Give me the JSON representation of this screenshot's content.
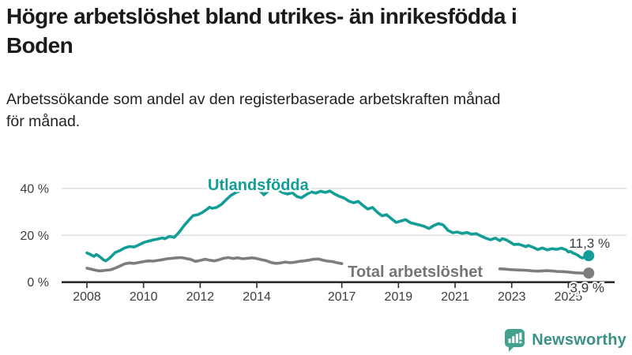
{
  "title": {
    "full": "Högre arbetslöshet bland utrikes- än inrikesfödda i Boden",
    "lines": [
      "Högre arbetslöshet bland utrikes- än inrikesfödda i",
      "Boden"
    ]
  },
  "subtitle": {
    "full": "Arbetssökande som andel av den registerbaserade arbetskraften månad för månad.",
    "lines": [
      "Arbetssökande som andel av den registerbaserade arbetskraften månad",
      "för månad."
    ]
  },
  "branding": {
    "logo_text": "Newsworthy",
    "icon": "newsworthy-bar-chart-bubble-icon",
    "icon_color": "#44a18d",
    "text_color": "#3c9184"
  },
  "chart_data": {
    "type": "line",
    "title": "Högre arbetslöshet bland utrikes- än inrikesfödda i Boden",
    "xlabel": "",
    "ylabel": "",
    "unit": "%",
    "grid": "horizontal",
    "legend_position": "inline-labels",
    "xlim": [
      2008,
      2026
    ],
    "ylim": [
      0,
      45
    ],
    "x_ticks": [
      {
        "year": 2008,
        "label": "2008"
      },
      {
        "year": 2010,
        "label": "2010"
      },
      {
        "year": 2012,
        "label": "2012"
      },
      {
        "year": 2014,
        "label": "2014"
      },
      {
        "year": 2017,
        "label": "2017"
      },
      {
        "year": 2019,
        "label": "2019"
      },
      {
        "year": 2021,
        "label": "2021"
      },
      {
        "year": 2023,
        "label": "2023"
      },
      {
        "year": 2025,
        "label": "2025"
      }
    ],
    "y_ticks": [
      {
        "value": 0,
        "label": "0 %"
      },
      {
        "value": 20,
        "label": "20 %"
      },
      {
        "value": 40,
        "label": "40 %"
      }
    ],
    "series": [
      {
        "name": "Utlandsfödda",
        "color": "#129e96",
        "label": {
          "text": "Utlandsfödda",
          "year": 2014.05,
          "value": 41.6
        },
        "end_label": {
          "text": "11,3 %",
          "value": 11.3
        },
        "points": [
          [
            2008.0,
            12.5
          ],
          [
            2008.08,
            12.1
          ],
          [
            2008.17,
            11.5
          ],
          [
            2008.25,
            11.0
          ],
          [
            2008.33,
            11.8
          ],
          [
            2008.42,
            11.2
          ],
          [
            2008.5,
            10.4
          ],
          [
            2008.58,
            9.6
          ],
          [
            2008.67,
            9.1
          ],
          [
            2008.75,
            9.8
          ],
          [
            2008.83,
            10.6
          ],
          [
            2008.92,
            11.7
          ],
          [
            2009.0,
            12.7
          ],
          [
            2009.17,
            13.5
          ],
          [
            2009.33,
            14.6
          ],
          [
            2009.5,
            15.2
          ],
          [
            2009.67,
            15.0
          ],
          [
            2009.83,
            15.9
          ],
          [
            2010.0,
            16.9
          ],
          [
            2010.17,
            17.5
          ],
          [
            2010.33,
            18.0
          ],
          [
            2010.5,
            18.4
          ],
          [
            2010.67,
            18.9
          ],
          [
            2010.75,
            18.5
          ],
          [
            2010.92,
            19.6
          ],
          [
            2011.08,
            19.1
          ],
          [
            2011.25,
            21.2
          ],
          [
            2011.42,
            24.0
          ],
          [
            2011.58,
            26.2
          ],
          [
            2011.75,
            28.4
          ],
          [
            2011.92,
            28.8
          ],
          [
            2012.08,
            29.8
          ],
          [
            2012.25,
            31.2
          ],
          [
            2012.33,
            32.0
          ],
          [
            2012.42,
            31.5
          ],
          [
            2012.58,
            31.9
          ],
          [
            2012.75,
            33.2
          ],
          [
            2012.92,
            35.2
          ],
          [
            2013.08,
            37.0
          ],
          [
            2013.25,
            38.2
          ],
          [
            2013.42,
            39.0
          ],
          [
            2013.58,
            39.6
          ],
          [
            2013.75,
            39.1
          ],
          [
            2013.92,
            40.1
          ],
          [
            2014.08,
            39.3
          ],
          [
            2014.25,
            37.3
          ],
          [
            2014.42,
            39.1
          ],
          [
            2014.58,
            40.0
          ],
          [
            2014.75,
            39.3
          ],
          [
            2014.92,
            38.2
          ],
          [
            2015.08,
            37.6
          ],
          [
            2015.25,
            38.2
          ],
          [
            2015.42,
            36.5
          ],
          [
            2015.58,
            36.0
          ],
          [
            2015.75,
            37.4
          ],
          [
            2015.92,
            38.5
          ],
          [
            2016.08,
            38.0
          ],
          [
            2016.25,
            38.8
          ],
          [
            2016.42,
            38.3
          ],
          [
            2016.58,
            38.9
          ],
          [
            2016.75,
            37.6
          ],
          [
            2016.92,
            36.6
          ],
          [
            2017.08,
            35.9
          ],
          [
            2017.25,
            34.6
          ],
          [
            2017.42,
            33.9
          ],
          [
            2017.58,
            34.5
          ],
          [
            2017.75,
            32.7
          ],
          [
            2017.92,
            31.2
          ],
          [
            2018.08,
            31.9
          ],
          [
            2018.25,
            29.9
          ],
          [
            2018.42,
            28.3
          ],
          [
            2018.58,
            28.8
          ],
          [
            2018.75,
            27.1
          ],
          [
            2018.92,
            25.5
          ],
          [
            2019.08,
            26.1
          ],
          [
            2019.25,
            26.7
          ],
          [
            2019.42,
            25.4
          ],
          [
            2019.58,
            24.9
          ],
          [
            2019.75,
            24.4
          ],
          [
            2019.92,
            23.8
          ],
          [
            2020.08,
            22.9
          ],
          [
            2020.25,
            24.2
          ],
          [
            2020.42,
            25.0
          ],
          [
            2020.58,
            24.4
          ],
          [
            2020.75,
            22.1
          ],
          [
            2020.92,
            21.1
          ],
          [
            2021.08,
            21.4
          ],
          [
            2021.25,
            20.8
          ],
          [
            2021.42,
            21.2
          ],
          [
            2021.58,
            20.5
          ],
          [
            2021.75,
            20.7
          ],
          [
            2021.92,
            19.7
          ],
          [
            2022.08,
            18.8
          ],
          [
            2022.25,
            18.1
          ],
          [
            2022.42,
            18.8
          ],
          [
            2022.58,
            17.7
          ],
          [
            2022.67,
            18.6
          ],
          [
            2022.83,
            17.9
          ],
          [
            2022.92,
            17.2
          ],
          [
            2023.08,
            16.1
          ],
          [
            2023.25,
            16.2
          ],
          [
            2023.42,
            15.5
          ],
          [
            2023.5,
            15.1
          ],
          [
            2023.58,
            15.7
          ],
          [
            2023.75,
            14.9
          ],
          [
            2023.92,
            13.9
          ],
          [
            2024.08,
            14.6
          ],
          [
            2024.25,
            13.8
          ],
          [
            2024.42,
            14.3
          ],
          [
            2024.58,
            14.0
          ],
          [
            2024.75,
            14.5
          ],
          [
            2024.92,
            13.8
          ],
          [
            2025.0,
            12.9
          ],
          [
            2025.08,
            13.1
          ],
          [
            2025.17,
            12.4
          ],
          [
            2025.25,
            12.0
          ],
          [
            2025.33,
            11.5
          ],
          [
            2025.42,
            10.7
          ],
          [
            2025.5,
            10.3
          ],
          [
            2025.58,
            10.9
          ],
          [
            2025.72,
            11.3
          ]
        ]
      },
      {
        "name": "Total arbetslöshet",
        "color": "#7d7d7d",
        "label": {
          "text": "Total arbetslöshet",
          "year": 2017.1,
          "value": 4.6
        },
        "end_label": {
          "text": "3,9 %",
          "value": 3.9
        },
        "points": [
          [
            2008.0,
            6.0
          ],
          [
            2008.17,
            5.5
          ],
          [
            2008.33,
            5.0
          ],
          [
            2008.5,
            4.8
          ],
          [
            2008.67,
            5.1
          ],
          [
            2008.83,
            5.3
          ],
          [
            2009.0,
            6.0
          ],
          [
            2009.17,
            6.9
          ],
          [
            2009.33,
            7.8
          ],
          [
            2009.5,
            8.2
          ],
          [
            2009.67,
            8.0
          ],
          [
            2009.83,
            8.4
          ],
          [
            2010.0,
            8.8
          ],
          [
            2010.17,
            9.1
          ],
          [
            2010.33,
            9.0
          ],
          [
            2010.5,
            9.3
          ],
          [
            2010.67,
            9.6
          ],
          [
            2010.83,
            10.0
          ],
          [
            2011.0,
            10.2
          ],
          [
            2011.17,
            10.4
          ],
          [
            2011.33,
            10.5
          ],
          [
            2011.5,
            10.1
          ],
          [
            2011.67,
            9.7
          ],
          [
            2011.83,
            8.9
          ],
          [
            2012.0,
            9.3
          ],
          [
            2012.17,
            9.8
          ],
          [
            2012.33,
            9.4
          ],
          [
            2012.5,
            9.1
          ],
          [
            2012.67,
            9.6
          ],
          [
            2012.83,
            10.2
          ],
          [
            2013.0,
            10.5
          ],
          [
            2013.17,
            10.1
          ],
          [
            2013.33,
            10.4
          ],
          [
            2013.5,
            10.0
          ],
          [
            2013.67,
            10.2
          ],
          [
            2013.83,
            10.4
          ],
          [
            2014.0,
            10.1
          ],
          [
            2014.17,
            9.6
          ],
          [
            2014.33,
            9.2
          ],
          [
            2014.5,
            8.4
          ],
          [
            2014.67,
            8.0
          ],
          [
            2014.83,
            8.2
          ],
          [
            2015.0,
            8.6
          ],
          [
            2015.17,
            8.3
          ],
          [
            2015.33,
            8.5
          ],
          [
            2015.5,
            8.9
          ],
          [
            2015.67,
            9.1
          ],
          [
            2015.83,
            9.4
          ],
          [
            2016.0,
            9.8
          ],
          [
            2016.17,
            9.9
          ],
          [
            2016.33,
            9.4
          ],
          [
            2016.5,
            9.0
          ],
          [
            2016.67,
            8.8
          ],
          [
            2016.83,
            8.3
          ],
          [
            2017.0,
            7.9
          ],
          [
            2017.2,
            null
          ],
          [
            2022.58,
            5.7
          ],
          [
            2022.75,
            5.6
          ],
          [
            2022.92,
            5.4
          ],
          [
            2023.08,
            5.3
          ],
          [
            2023.25,
            5.2
          ],
          [
            2023.42,
            5.1
          ],
          [
            2023.58,
            5.0
          ],
          [
            2023.75,
            4.8
          ],
          [
            2023.92,
            4.7
          ],
          [
            2024.08,
            4.8
          ],
          [
            2024.25,
            4.9
          ],
          [
            2024.42,
            4.8
          ],
          [
            2024.58,
            4.6
          ],
          [
            2024.75,
            4.5
          ],
          [
            2024.92,
            4.4
          ],
          [
            2025.08,
            4.2
          ],
          [
            2025.25,
            4.0
          ],
          [
            2025.42,
            3.9
          ],
          [
            2025.58,
            3.85
          ],
          [
            2025.72,
            3.9
          ]
        ]
      }
    ]
  }
}
